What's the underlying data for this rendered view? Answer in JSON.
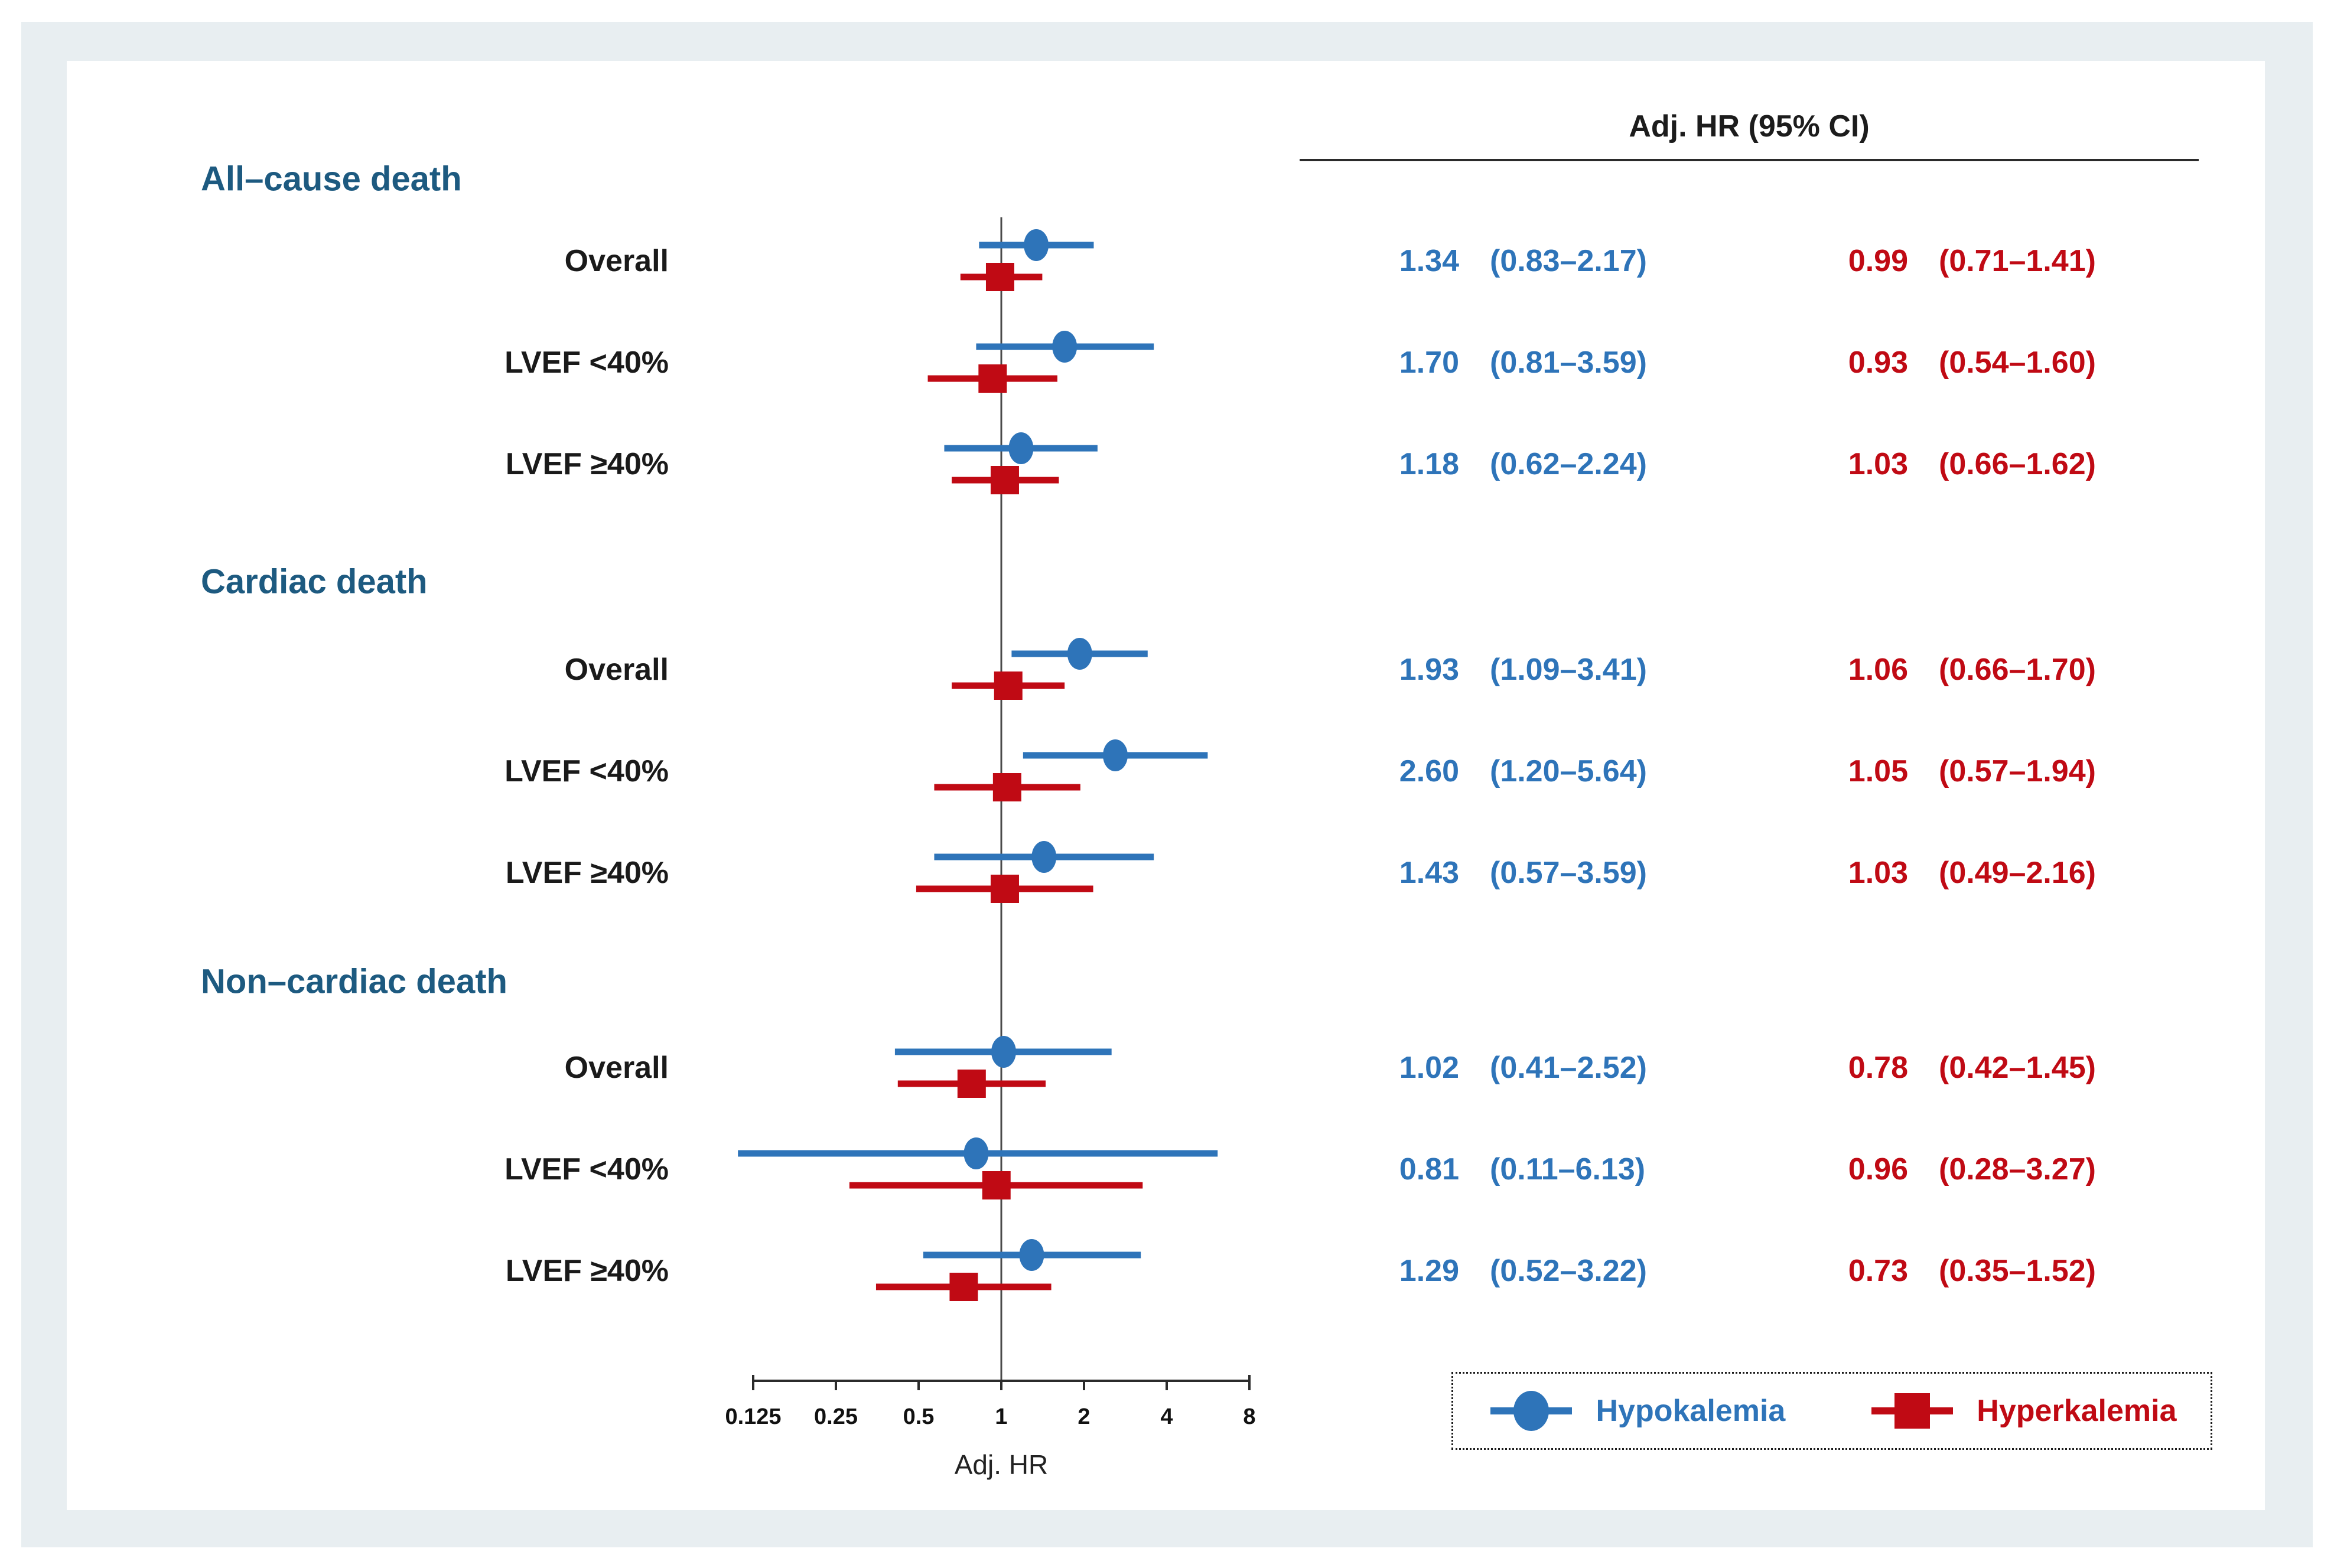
{
  "figure": {
    "colors": {
      "hypokalemia": "#2E74B9",
      "hyperkalemia": "#C00A14",
      "section_header": "#1D5A80",
      "text": "#1A1A1A",
      "frame_background": "#E8EEF1",
      "axis": "#2B2B2B"
    },
    "legend": {
      "items": [
        {
          "label": "Hypokalemia",
          "series": "hypokalemia",
          "marker": "circle"
        },
        {
          "label": "Hyperkalemia",
          "series": "hyperkalemia",
          "marker": "square"
        }
      ]
    }
  },
  "chart_data": {
    "type": "forest",
    "x_scale": "log2",
    "xlabel": "Adj. HR",
    "column_header": "Adj. HR (95% CI)",
    "reference_line": 1,
    "x_ticks": [
      0.125,
      0.25,
      0.5,
      1,
      2,
      4,
      8
    ],
    "x_tick_labels": [
      "0.125",
      "0.25",
      "0.5",
      "1",
      "2",
      "4",
      "8"
    ],
    "xlim": [
      0.125,
      8
    ],
    "grid": false,
    "legend_position": "bottom-right",
    "series_names": [
      "Hypokalemia",
      "Hyperkalemia"
    ],
    "groups": [
      {
        "label": "All–cause death",
        "rows": [
          {
            "label": "Overall",
            "hypokalemia": {
              "hr": 1.34,
              "lo": 0.83,
              "hi": 2.17,
              "display": "1.34",
              "ci": "(0.83–2.17)"
            },
            "hyperkalemia": {
              "hr": 0.99,
              "lo": 0.71,
              "hi": 1.41,
              "display": "0.99",
              "ci": "(0.71–1.41)"
            }
          },
          {
            "label": "LVEF <40%",
            "hypokalemia": {
              "hr": 1.7,
              "lo": 0.81,
              "hi": 3.59,
              "display": "1.70",
              "ci": "(0.81–3.59)"
            },
            "hyperkalemia": {
              "hr": 0.93,
              "lo": 0.54,
              "hi": 1.6,
              "display": "0.93",
              "ci": "(0.54–1.60)"
            }
          },
          {
            "label": "LVEF ≥40%",
            "hypokalemia": {
              "hr": 1.18,
              "lo": 0.62,
              "hi": 2.24,
              "display": "1.18",
              "ci": "(0.62–2.24)"
            },
            "hyperkalemia": {
              "hr": 1.03,
              "lo": 0.66,
              "hi": 1.62,
              "display": "1.03",
              "ci": "(0.66–1.62)"
            }
          }
        ]
      },
      {
        "label": "Cardiac death",
        "rows": [
          {
            "label": "Overall",
            "hypokalemia": {
              "hr": 1.93,
              "lo": 1.09,
              "hi": 3.41,
              "display": "1.93",
              "ci": "(1.09–3.41)"
            },
            "hyperkalemia": {
              "hr": 1.06,
              "lo": 0.66,
              "hi": 1.7,
              "display": "1.06",
              "ci": "(0.66–1.70)"
            }
          },
          {
            "label": "LVEF <40%",
            "hypokalemia": {
              "hr": 2.6,
              "lo": 1.2,
              "hi": 5.64,
              "display": "2.60",
              "ci": "(1.20–5.64)"
            },
            "hyperkalemia": {
              "hr": 1.05,
              "lo": 0.57,
              "hi": 1.94,
              "display": "1.05",
              "ci": "(0.57–1.94)"
            }
          },
          {
            "label": "LVEF ≥40%",
            "hypokalemia": {
              "hr": 1.43,
              "lo": 0.57,
              "hi": 3.59,
              "display": "1.43",
              "ci": "(0.57–3.59)"
            },
            "hyperkalemia": {
              "hr": 1.03,
              "lo": 0.49,
              "hi": 2.16,
              "display": "1.03",
              "ci": "(0.49–2.16)"
            }
          }
        ]
      },
      {
        "label": "Non–cardiac death",
        "rows": [
          {
            "label": "Overall",
            "hypokalemia": {
              "hr": 1.02,
              "lo": 0.41,
              "hi": 2.52,
              "display": "1.02",
              "ci": "(0.41–2.52)"
            },
            "hyperkalemia": {
              "hr": 0.78,
              "lo": 0.42,
              "hi": 1.45,
              "display": "0.78",
              "ci": "(0.42–1.45)"
            }
          },
          {
            "label": "LVEF <40%",
            "hypokalemia": {
              "hr": 0.81,
              "lo": 0.11,
              "hi": 6.13,
              "display": "0.81",
              "ci": "(0.11–6.13)"
            },
            "hyperkalemia": {
              "hr": 0.96,
              "lo": 0.28,
              "hi": 3.27,
              "display": "0.96",
              "ci": "(0.28–3.27)"
            }
          },
          {
            "label": "LVEF ≥40%",
            "hypokalemia": {
              "hr": 1.29,
              "lo": 0.52,
              "hi": 3.22,
              "display": "1.29",
              "ci": "(0.52–3.22)"
            },
            "hyperkalemia": {
              "hr": 0.73,
              "lo": 0.35,
              "hi": 1.52,
              "display": "0.73",
              "ci": "(0.35–1.52)"
            }
          }
        ]
      }
    ]
  }
}
